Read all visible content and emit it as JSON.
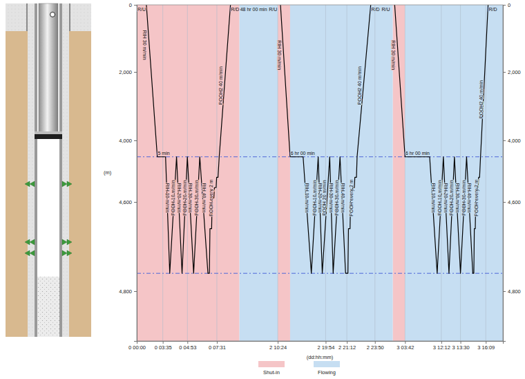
{
  "chart_data": {
    "type": "line",
    "x_label": "(dd:hh:mm)",
    "y_label": "(m)",
    "xlim": [
      0,
      90
    ],
    "xticks": [
      {
        "value": 0,
        "label": "0 00:00"
      },
      {
        "value": 3.583,
        "label": "0 03:35"
      },
      {
        "value": 4.883,
        "label": "0 04:53"
      },
      {
        "value": 7.517,
        "label": "0 07:31"
      },
      {
        "value": 58.4,
        "label": "2 10:24"
      },
      {
        "value": 67.9,
        "label": "2 19:54"
      },
      {
        "value": 69.2,
        "label": "2 21:12"
      },
      {
        "value": 71.833,
        "label": "2 23:50"
      },
      {
        "value": 75.7,
        "label": "3 03:42"
      },
      {
        "value": 84.2,
        "label": "3 12:12"
      },
      {
        "value": 85.5,
        "label": "3 13:30"
      },
      {
        "value": 88.15,
        "label": "3 16:09"
      }
    ],
    "ylim": [
      0,
      4900
    ],
    "yticks": [
      0,
      {
        "value": 2000,
        "label": "2,000"
      },
      {
        "value": 4000,
        "label": "4,000"
      },
      {
        "value": 4600,
        "label": "4,600"
      },
      {
        "value": 4800,
        "label": "4,800"
      }
    ],
    "grid": true,
    "color": "#000000",
    "x": [
      1.32,
      2.83,
      3.73,
      3.95,
      4.31,
      4.6,
      4.88,
      5.44,
      5.99,
      6.72,
      6.85,
      6.9,
      7.05,
      7.1,
      7.25,
      7.3,
      7.45,
      7.5,
      8.5,
      9.5,
      18.9,
      null,
      58.94,
      60.85,
      63.43,
      65.06,
      66.42,
      67.23,
      68.15,
      68.36,
      68.78,
      69.12,
      69.3,
      69.35,
      69.5,
      69.55,
      69.7,
      69.75,
      69.9,
      69.95,
      70.1,
      70.16,
      71.44,
      null,
      74.37,
      75.7,
      81.47,
      83.23,
      84.34,
      84.72,
      85.09,
      85.5,
      86.14,
      86.79,
      86.9,
      86.95,
      87.05,
      87.1,
      87.2,
      87.25,
      87.35,
      87.4,
      87.5,
      87.6,
      88.4
    ],
    "values": [
      0,
      4160,
      4160,
      4760,
      4160,
      4760,
      4160,
      4760,
      4160,
      4760,
      4760,
      4660,
      4660,
      4560,
      4560,
      4460,
      4460,
      4360,
      4360,
      4160,
      0,
      null,
      0,
      4160,
      4160,
      4760,
      4160,
      4760,
      4160,
      4760,
      4160,
      4760,
      4760,
      4660,
      4660,
      4560,
      4560,
      4460,
      4460,
      4360,
      4360,
      4160,
      0,
      null,
      0,
      4160,
      4160,
      4760,
      4160,
      4760,
      4160,
      4760,
      4160,
      4760,
      4760,
      4660,
      4660,
      4560,
      4560,
      4460,
      4460,
      4360,
      4360,
      4160,
      0
    ],
    "shading": [
      {
        "name": "Shut-in",
        "color": "#f5c5c7",
        "ranges": [
          [
            0,
            26.4
          ],
          [
            58.4,
            60.85
          ],
          [
            74.12,
            75.7
          ]
        ]
      },
      {
        "name": "Flowing",
        "color": "#c6def2",
        "ranges": [
          [
            26.4,
            58.4
          ],
          [
            60.85,
            74.12
          ],
          [
            75.7,
            90
          ]
        ]
      }
    ],
    "legend": "bottom",
    "hlines": [
      4160,
      4760
    ],
    "annotations": [
      {
        "text": "R/U",
        "x": 0.1,
        "y": 0
      },
      {
        "text": "5 min",
        "x": 2.9,
        "y": 4160
      },
      {
        "text": "R/D",
        "x": 19.2,
        "y": 0
      },
      {
        "text": "48 hr 00 min",
        "x": 27,
        "y": 0
      },
      {
        "text": "R/U",
        "x": 51,
        "y": 0
      },
      {
        "text": "6 hr 00 min",
        "x": 60.95,
        "y": 4160
      },
      {
        "text": "R/D",
        "x": 71.5,
        "y": 0
      },
      {
        "text": "R/U",
        "x": 72.7,
        "y": 0
      },
      {
        "text": "6 hr 00 min",
        "x": 75.8,
        "y": 4160
      },
      {
        "text": "R/D",
        "x": 88.47,
        "y": 0
      }
    ],
    "line_labels": [
      {
        "text": "RIH 30 m/min",
        "x": 1.1,
        "y": 1200
      },
      {
        "text": "RIH 10 m/min",
        "x": 3.84,
        "y": 4560
      },
      {
        "text": "POOH 10 m/min",
        "x": 4.13,
        "y": 4560
      },
      {
        "text": "RIH 20 m/min",
        "x": 4.455,
        "y": 4560
      },
      {
        "text": "POOH 20 m/min",
        "x": 4.74,
        "y": 4560
      },
      {
        "text": "RIH 30 m/min",
        "x": 5.16,
        "y": 4560
      },
      {
        "text": "POOH 30 m/min",
        "x": 5.715,
        "y": 4560
      },
      {
        "text": "RIH 40 m/min",
        "x": 6.355,
        "y": 4560
      },
      {
        "text": "POOH every 2 m",
        "x": 7.0,
        "y": 4560
      },
      {
        "text": "POOH2 40 m/min",
        "x": 10.95,
        "y": 2400
      },
      {
        "text": "RIH 30 m/min",
        "x": 58.67,
        "y": 1500
      },
      {
        "text": "RIH 10 m/min",
        "x": 64.245,
        "y": 4560
      },
      {
        "text": "POOH 10 m/min",
        "x": 65.74,
        "y": 4560
      },
      {
        "text": "RIH 20 m/min",
        "x": 66.825,
        "y": 4560
      },
      {
        "text": "POOH 20 m/min",
        "x": 67.69,
        "y": 4560
      },
      {
        "text": "RIH 30 m/min",
        "x": 68.255,
        "y": 4560
      },
      {
        "text": "POOH 30 m/min",
        "x": 68.57,
        "y": 4560
      },
      {
        "text": "RIH 40 m/min",
        "x": 68.95,
        "y": 4560
      },
      {
        "text": "POOH every 2 m",
        "x": 69.6,
        "y": 4560
      },
      {
        "text": "POOH2 40 m/min",
        "x": 70.42,
        "y": 2400
      },
      {
        "text": "RIH 30 m/min",
        "x": 74.2,
        "y": 1500
      },
      {
        "text": "RIH 10 m/min",
        "x": 82.35,
        "y": 4560
      },
      {
        "text": "POOH 10 m/min",
        "x": 83.785,
        "y": 4560
      },
      {
        "text": "RIH 20 m/min",
        "x": 84.53,
        "y": 4560
      },
      {
        "text": "POOH 20 m/min",
        "x": 84.905,
        "y": 4560
      },
      {
        "text": "RIH 30 m/min",
        "x": 85.295,
        "y": 4560
      },
      {
        "text": "POOH 30 m/min",
        "x": 85.82,
        "y": 4560
      },
      {
        "text": "RIH 40 m/min",
        "x": 86.465,
        "y": 4560
      },
      {
        "text": "POOH every 2 m",
        "x": 87.15,
        "y": 4560
      },
      {
        "text": "POOH2 40 m/min",
        "x": 87.65,
        "y": 2800
      }
    ]
  }
}
